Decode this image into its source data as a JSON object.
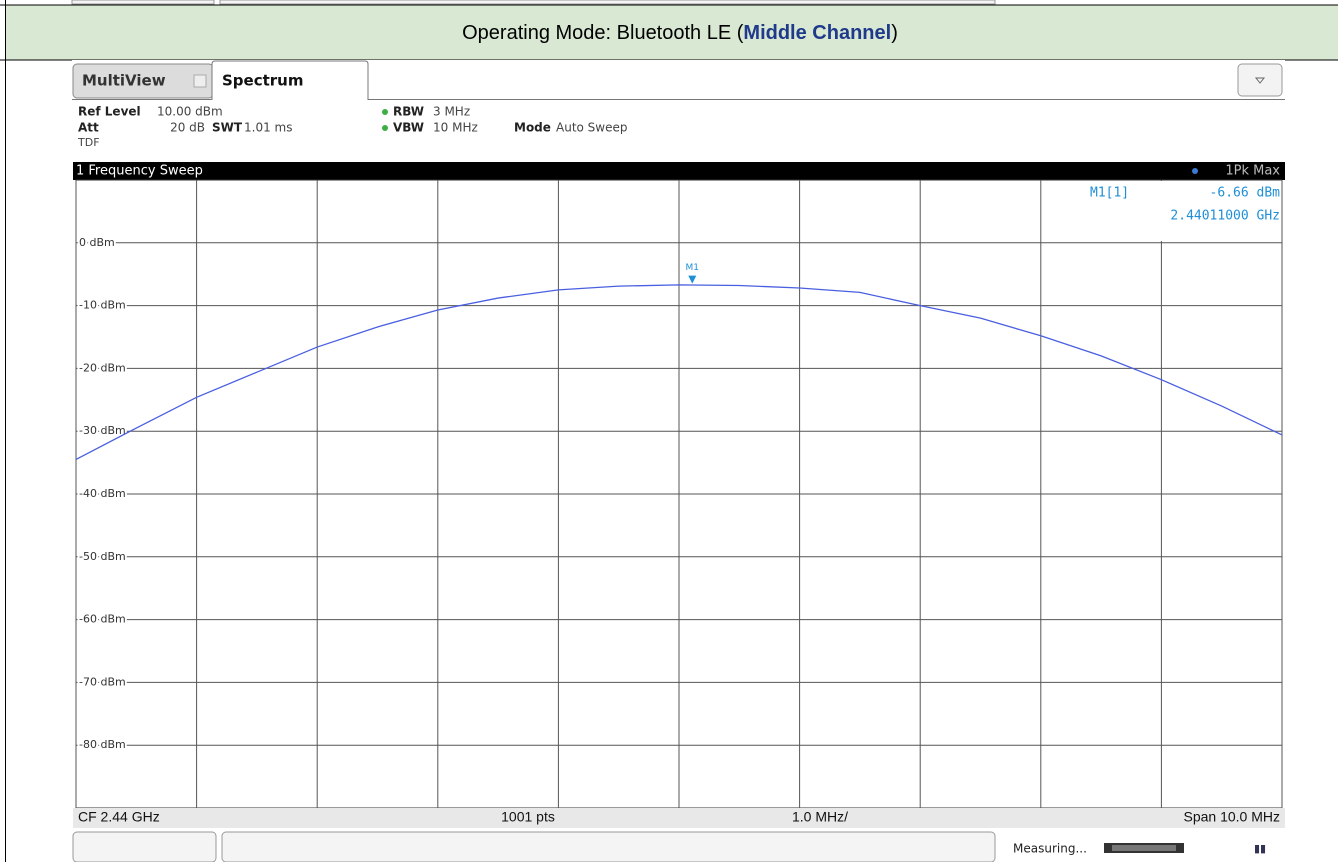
{
  "header": {
    "prefix": "Operating Mode: Bluetooth LE (",
    "highlight": "Middle Channel",
    "suffix": ")"
  },
  "tabs": [
    "MultiView",
    "Spectrum"
  ],
  "settings": {
    "ref_level_label": "Ref Level",
    "ref_level": "10.00 dBm",
    "att_label": "Att",
    "att": "20 dB",
    "swt_label": "SWT",
    "swt": "1.01 ms",
    "rbw_label": "RBW",
    "rbw": "3 MHz",
    "vbw_label": "VBW",
    "vbw": "10 MHz",
    "mode_label": "Mode",
    "mode": "Auto Sweep",
    "tdf": "TDF"
  },
  "window_title": "1 Frequency Sweep",
  "footer": {
    "cf": "CF 2.44 GHz",
    "pts": "1001 pts",
    "div": "1.0 MHz/",
    "span": "Span 10.0 MHz"
  },
  "status": "Measuring...",
  "chart_data": {
    "type": "line",
    "x": [
      2.435,
      2.4355,
      2.436,
      2.4365,
      2.437,
      2.4375,
      2.438,
      2.4385,
      2.439,
      2.4395,
      2.44,
      2.4405,
      2.441,
      2.4415,
      2.442,
      2.4425,
      2.443,
      2.4435,
      2.444,
      2.4445,
      2.445
    ],
    "series": [
      {
        "name": "1Pk Max",
        "color": "#4a5fe0",
        "values": [
          -34.5,
          -29.5,
          -24.6,
          -20.6,
          -16.6,
          -13.4,
          -10.7,
          -8.8,
          -7.5,
          -6.9,
          -6.7,
          -6.8,
          -7.2,
          -7.9,
          -10.0,
          -12.0,
          -14.8,
          -18.0,
          -21.8,
          -26.0,
          -30.6
        ]
      }
    ],
    "xlim": [
      2.435,
      2.445
    ],
    "xticks": [
      2.435,
      2.436,
      2.437,
      2.438,
      2.439,
      2.44,
      2.441,
      2.442,
      2.443,
      2.444,
      2.445
    ],
    "ylim": [
      -90,
      10
    ],
    "yticks": [
      {
        "value": 0,
        "label": "0 dBm"
      },
      {
        "value": -10,
        "label": "-10 dBm"
      },
      {
        "value": -20,
        "label": "-20 dBm"
      },
      {
        "value": -30,
        "label": "-30 dBm"
      },
      {
        "value": -40,
        "label": "-40 dBm"
      },
      {
        "value": -50,
        "label": "-50 dBm"
      },
      {
        "value": -60,
        "label": "-60 dBm"
      },
      {
        "value": -70,
        "label": "-70 dBm"
      },
      {
        "value": -80,
        "label": "-80 dBm"
      }
    ],
    "grid": true,
    "marker": {
      "name": "M1",
      "label": "M1[1]",
      "x": 2.44011,
      "y": -6.66,
      "y_label": "-6.66 dBm",
      "x_label": "2.44011000 GHz",
      "color": "#1e8fd6"
    }
  }
}
